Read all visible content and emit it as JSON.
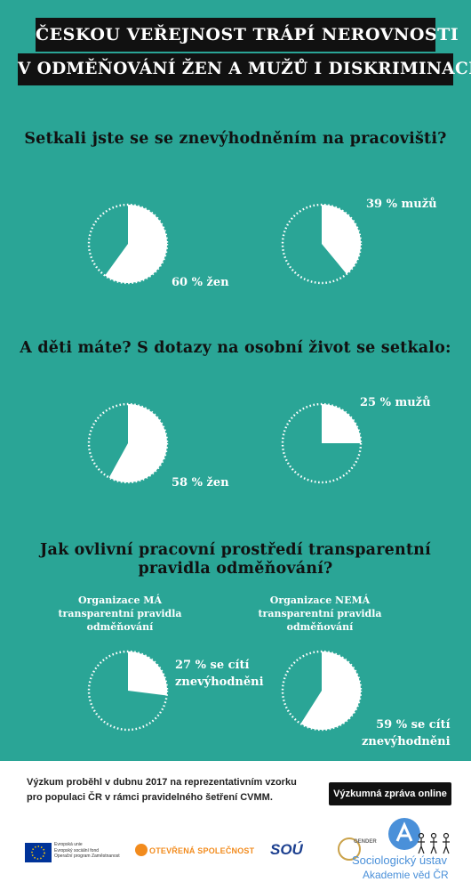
{
  "title_line1": "ČESKOU VEŘEJNOST TRÁPÍ NEROVNOSTI",
  "title_line2": "V ODMĚŇOVÁNÍ ŽEN A MUŽŮ I DISKRIMINACE",
  "colors": {
    "background": "#2aa596",
    "pie_fill": "#ffffff",
    "title_band": "#111111"
  },
  "chart_data": [
    {
      "type": "pie",
      "title": "Setkali jste se se znevýhodněním na pracovišti?",
      "series": [
        {
          "label": "60 % žen",
          "value": 60
        },
        {
          "label": "39 % mužů",
          "value": 39
        }
      ]
    },
    {
      "type": "pie",
      "title": "A děti máte? S dotazy na osobní život se setkalo:",
      "series": [
        {
          "label": "58 % žen",
          "value": 58
        },
        {
          "label": "25 % mužů",
          "value": 25
        }
      ]
    },
    {
      "type": "pie",
      "title_line1": "Jak ovlivní pracovní prostředí transparentní",
      "title_line2": "pravidla odměňování?",
      "groups": [
        {
          "heading": [
            "Organizace MÁ",
            "transparentní pravidla",
            "odměňování"
          ],
          "label": [
            "27 % se cítí",
            "znevýhodněni"
          ],
          "value": 27
        },
        {
          "heading": [
            "Organizace NEMÁ",
            "transparentní pravidla",
            "odměňování"
          ],
          "label": [
            "59 % se cítí",
            "znevýhodněni"
          ],
          "value": 59
        }
      ]
    }
  ],
  "footer": {
    "text_line1": "Výzkum proběhl v dubnu 2017 na reprezentativním vzorku",
    "text_line2": "pro populaci ČR v rámci pravidelného šetření CVMM.",
    "button": "Výzkumná zpráva online",
    "logos": {
      "eu_line1": "Evropská unie",
      "eu_line2": "Evropský sociální fond",
      "eu_line3": "Operační program Zaměstnanost",
      "os": "OTEVŘENÁ SPOLEČNOST",
      "sou": "SOÚ",
      "gender": "GENDER",
      "su_line1": "Sociologický ústav",
      "su_line2": "Akademie věd ČR"
    }
  }
}
